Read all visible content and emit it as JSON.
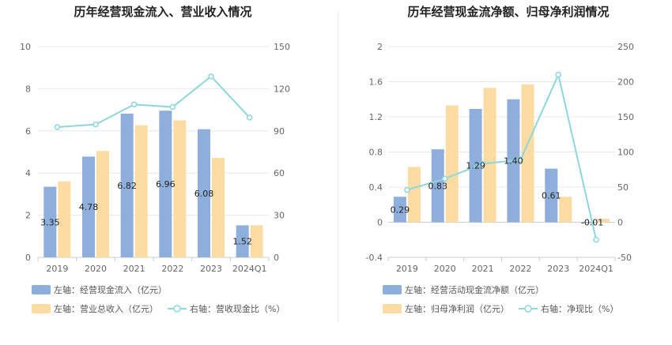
{
  "chart_data": [
    {
      "type": "bar",
      "title": "历年经营现金流入、营业收入情况",
      "categories": [
        "2019",
        "2020",
        "2021",
        "2022",
        "2023",
        "2024Q1"
      ],
      "left_axis": {
        "ylim": [
          0,
          10
        ],
        "ticks": [
          "0",
          "2",
          "4",
          "6",
          "8",
          "10"
        ]
      },
      "right_axis": {
        "ylim": [
          0,
          150
        ],
        "ticks": [
          "0",
          "30",
          "60",
          "90",
          "120",
          "150"
        ]
      },
      "series": [
        {
          "name": "左轴：经营现金流入（亿元）",
          "kind": "bar",
          "axis": "left",
          "color": "#8eaedb",
          "values": [
            3.35,
            4.78,
            6.82,
            6.96,
            6.08,
            1.52
          ],
          "labels": [
            "3.35",
            "4.78",
            "6.82",
            "6.96",
            "6.08",
            "1.52"
          ]
        },
        {
          "name": "左轴：营业总收入（亿元）",
          "kind": "bar",
          "axis": "left",
          "color": "#fddca3",
          "values": [
            3.6,
            5.05,
            6.27,
            6.5,
            4.72,
            1.52
          ]
        },
        {
          "name": "右轴：营收现金比（%）",
          "kind": "line",
          "axis": "right",
          "color": "#8ed6dc",
          "values": [
            92.7,
            94.6,
            108.8,
            107.0,
            128.8,
            99.5
          ]
        }
      ],
      "legend": "bottom",
      "grid": true
    },
    {
      "type": "bar",
      "title": "历年经营现金流净额、归母净利润情况",
      "categories": [
        "2019",
        "2020",
        "2021",
        "2022",
        "2023",
        "2024Q1"
      ],
      "left_axis": {
        "ylim": [
          -0.4,
          2
        ],
        "ticks": [
          "-0.4",
          "0",
          "0.4",
          "0.8",
          "1.2",
          "1.6",
          "2"
        ]
      },
      "right_axis": {
        "ylim": [
          -50,
          250
        ],
        "ticks": [
          "-50",
          "0",
          "50",
          "100",
          "150",
          "200",
          "250"
        ]
      },
      "series": [
        {
          "name": "左轴：经营活动现金流净额（亿元）",
          "kind": "bar",
          "axis": "left",
          "color": "#8eaedb",
          "values": [
            0.29,
            0.83,
            1.29,
            1.4,
            0.61,
            -0.01
          ],
          "labels": [
            "0.29",
            "0.83",
            "1.29",
            "1.40",
            "0.61",
            "-0.01"
          ]
        },
        {
          "name": "左轴：归母净利润（亿元）",
          "kind": "bar",
          "axis": "left",
          "color": "#fddca3",
          "values": [
            0.63,
            1.33,
            1.53,
            1.57,
            0.29,
            0.04
          ]
        },
        {
          "name": "右轴：净现比（%）",
          "kind": "line",
          "axis": "right",
          "color": "#8ed6dc",
          "values": [
            46,
            62,
            83,
            89,
            210,
            -25
          ]
        }
      ],
      "legend": "bottom",
      "grid": true
    }
  ]
}
